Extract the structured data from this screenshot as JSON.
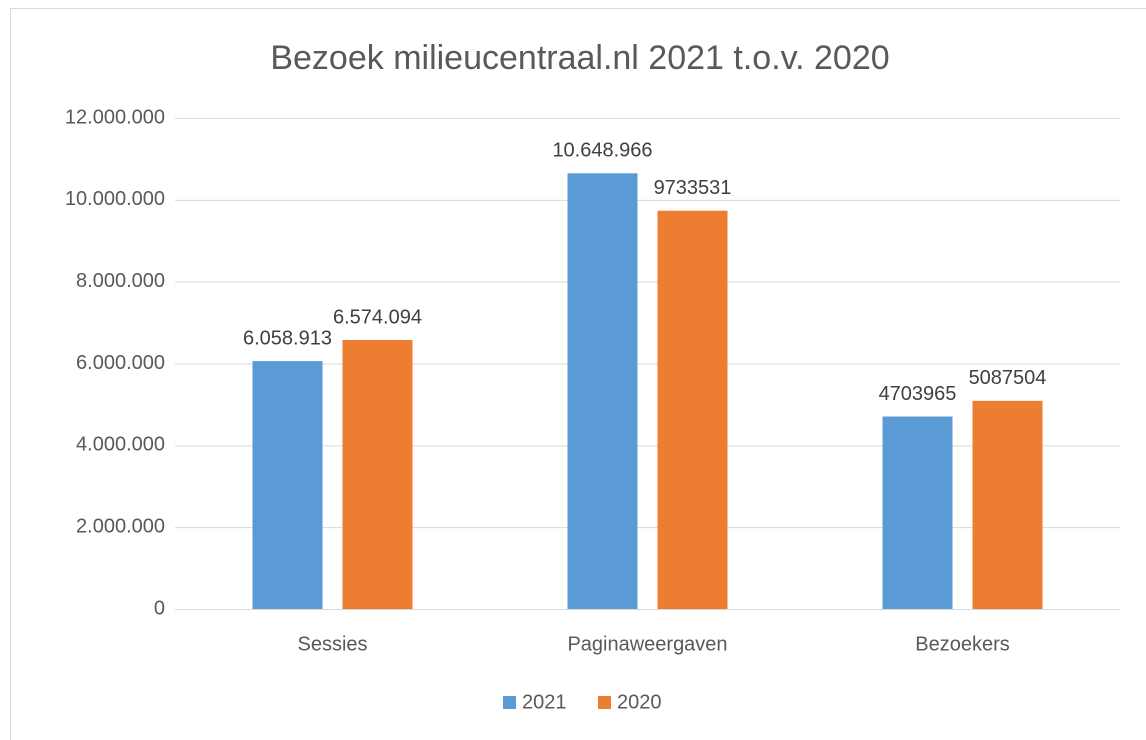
{
  "chart_data": {
    "type": "bar",
    "title": "Bezoek milieucentraal.nl 2021 t.o.v. 2020",
    "categories": [
      "Sessies",
      "Paginaweergaven",
      "Bezoekers"
    ],
    "series": [
      {
        "name": "2021",
        "color": "#5b9bd5",
        "values": [
          6058913,
          10648966,
          4703965
        ],
        "value_labels": [
          "6.058.913",
          "10.648.966",
          "4703965"
        ]
      },
      {
        "name": "2020",
        "color": "#ed7d31",
        "values": [
          6574094,
          9733531,
          5087504
        ],
        "value_labels": [
          "6.574.094",
          "9733531",
          "5087504"
        ]
      }
    ],
    "ylim": [
      0,
      12000000
    ],
    "yticks": [
      0,
      {
        "value": 2000000,
        "label": "2.000.000"
      },
      {
        "value": 4000000,
        "label": "4.000.000"
      },
      {
        "value": 6000000,
        "label": "6.000.000"
      },
      {
        "value": 8000000,
        "label": "8.000.000"
      },
      {
        "value": 10000000,
        "label": "10.000.000"
      },
      {
        "value": 12000000,
        "label": "12.000.000"
      }
    ],
    "grid": true,
    "legend": "bottom"
  }
}
